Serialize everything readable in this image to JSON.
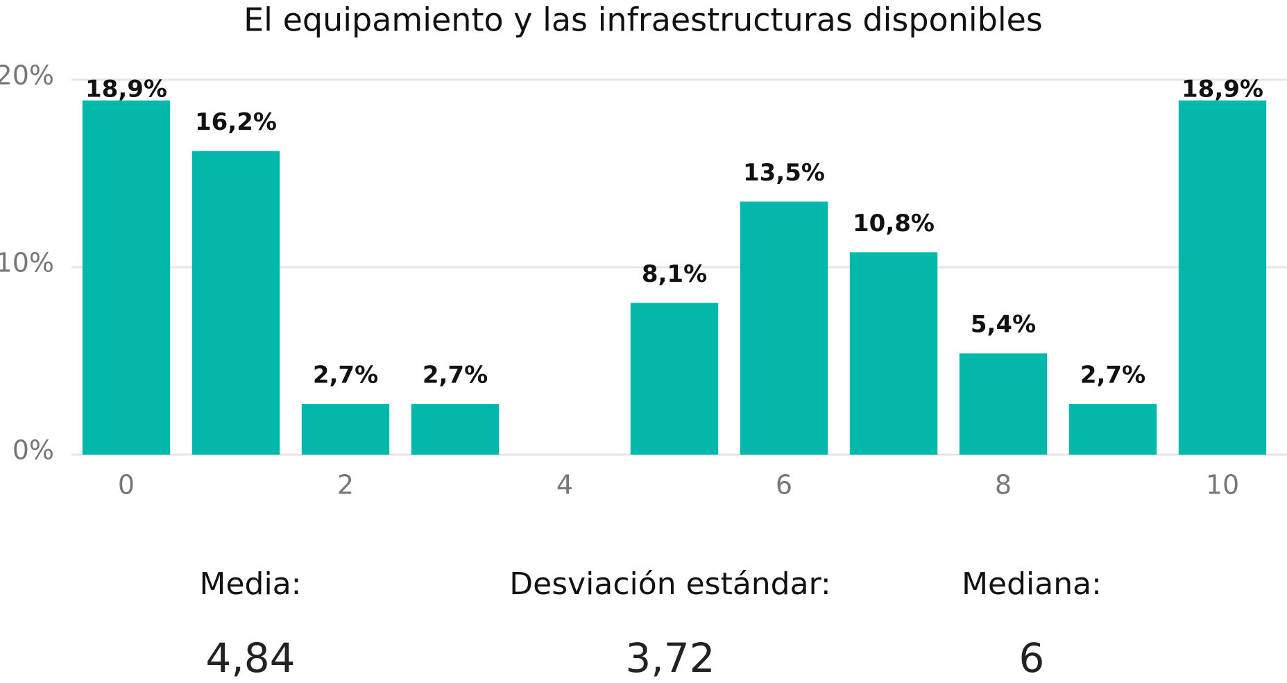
{
  "chart_data": {
    "type": "bar",
    "title": "El equipamiento y las infraestructuras disponibles",
    "categories": [
      "0",
      null,
      "2",
      null,
      "4",
      null,
      "6",
      null,
      "8",
      null,
      "10"
    ],
    "values": [
      18.9,
      16.2,
      2.7,
      2.7,
      0,
      8.1,
      13.5,
      10.8,
      5.4,
      2.7,
      18.9
    ],
    "value_labels": [
      "18,9%",
      "16,2%",
      "2,7%",
      "2,7%",
      null,
      "8,1%",
      "13,5%",
      "10,8%",
      "5,4%",
      "2,7%",
      "18,9%"
    ],
    "color": "#01b8aa",
    "ylim": [
      0,
      20
    ],
    "yticks": [
      {
        "value": 0,
        "label": "0%"
      },
      {
        "value": 10,
        "label": "10%"
      },
      {
        "value": 20,
        "label": "20%"
      }
    ],
    "grid": true
  },
  "stats": [
    {
      "label": "Media:",
      "value": "4,84"
    },
    {
      "label": "Desviación estándar:",
      "value": "3,72"
    },
    {
      "label": "Mediana:",
      "value": "6"
    }
  ]
}
